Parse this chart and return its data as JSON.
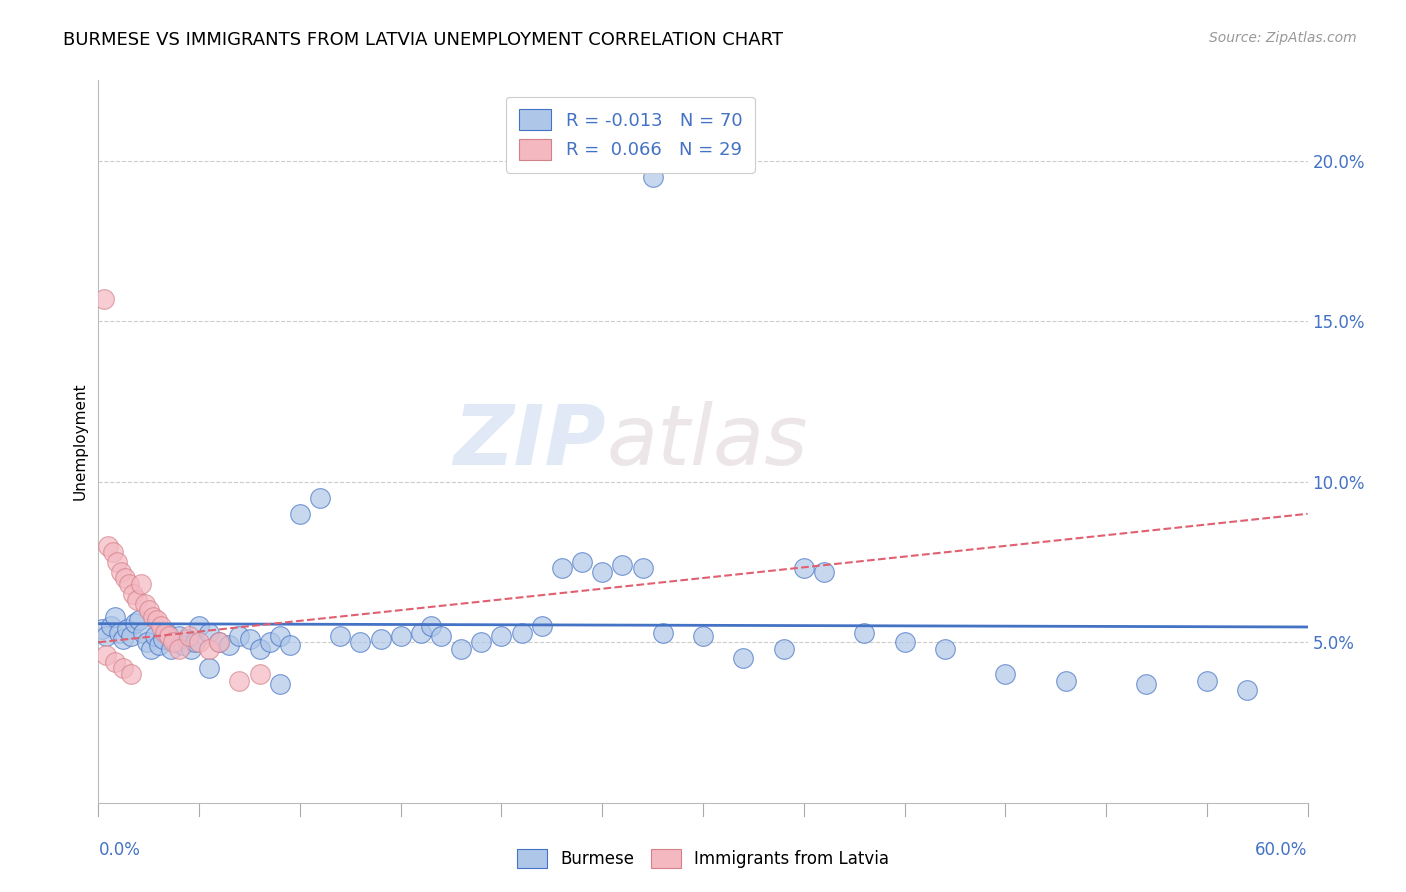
{
  "title": "BURMESE VS IMMIGRANTS FROM LATVIA UNEMPLOYMENT CORRELATION CHART",
  "source": "Source: ZipAtlas.com",
  "ylabel": "Unemployment",
  "y_ticks": [
    0.05,
    0.1,
    0.15,
    0.2
  ],
  "y_tick_labels": [
    "5.0%",
    "10.0%",
    "15.0%",
    "20.0%"
  ],
  "xlim": [
    0.0,
    0.6
  ],
  "ylim": [
    0.0,
    0.225
  ],
  "legend_labels": [
    "Burmese",
    "Immigrants from Latvia"
  ],
  "blue_r": -0.013,
  "blue_n": 70,
  "pink_r": 0.066,
  "pink_n": 29,
  "blue_scatter_x": [
    0.275,
    0.002,
    0.004,
    0.006,
    0.008,
    0.01,
    0.012,
    0.014,
    0.016,
    0.018,
    0.02,
    0.022,
    0.024,
    0.026,
    0.028,
    0.03,
    0.032,
    0.034,
    0.036,
    0.038,
    0.04,
    0.042,
    0.044,
    0.046,
    0.048,
    0.05,
    0.055,
    0.06,
    0.065,
    0.07,
    0.075,
    0.08,
    0.085,
    0.09,
    0.095,
    0.1,
    0.11,
    0.12,
    0.13,
    0.14,
    0.15,
    0.16,
    0.165,
    0.17,
    0.18,
    0.19,
    0.2,
    0.21,
    0.22,
    0.23,
    0.24,
    0.25,
    0.26,
    0.27,
    0.28,
    0.3,
    0.32,
    0.34,
    0.35,
    0.36,
    0.38,
    0.4,
    0.42,
    0.45,
    0.48,
    0.52,
    0.55,
    0.57,
    0.055,
    0.09
  ],
  "blue_scatter_y": [
    0.195,
    0.054,
    0.052,
    0.055,
    0.058,
    0.053,
    0.051,
    0.054,
    0.052,
    0.056,
    0.057,
    0.053,
    0.05,
    0.048,
    0.052,
    0.049,
    0.051,
    0.053,
    0.048,
    0.05,
    0.052,
    0.049,
    0.051,
    0.048,
    0.05,
    0.055,
    0.053,
    0.05,
    0.049,
    0.052,
    0.051,
    0.048,
    0.05,
    0.052,
    0.049,
    0.09,
    0.095,
    0.052,
    0.05,
    0.051,
    0.052,
    0.053,
    0.055,
    0.052,
    0.048,
    0.05,
    0.052,
    0.053,
    0.055,
    0.073,
    0.075,
    0.072,
    0.074,
    0.073,
    0.053,
    0.052,
    0.045,
    0.048,
    0.073,
    0.072,
    0.053,
    0.05,
    0.048,
    0.04,
    0.038,
    0.037,
    0.038,
    0.035,
    0.042,
    0.037
  ],
  "pink_scatter_x": [
    0.003,
    0.005,
    0.007,
    0.009,
    0.011,
    0.013,
    0.015,
    0.017,
    0.019,
    0.021,
    0.023,
    0.025,
    0.027,
    0.029,
    0.031,
    0.033,
    0.035,
    0.037,
    0.04,
    0.045,
    0.05,
    0.055,
    0.06,
    0.07,
    0.08,
    0.004,
    0.008,
    0.012,
    0.016
  ],
  "pink_scatter_y": [
    0.157,
    0.08,
    0.078,
    0.075,
    0.072,
    0.07,
    0.068,
    0.065,
    0.063,
    0.068,
    0.062,
    0.06,
    0.058,
    0.057,
    0.055,
    0.053,
    0.052,
    0.05,
    0.048,
    0.052,
    0.05,
    0.048,
    0.05,
    0.038,
    0.04,
    0.046,
    0.044,
    0.042,
    0.04
  ],
  "blue_line_color": "#4472c4",
  "pink_line_color": "#e06070",
  "scatter_blue_color": "#aec6e8",
  "scatter_blue_edge": "#4472c4",
  "scatter_pink_color": "#f4b8c1",
  "scatter_pink_edge": "#d4808a",
  "watermark_zip": "ZIP",
  "watermark_atlas": "atlas",
  "background_color": "#ffffff"
}
